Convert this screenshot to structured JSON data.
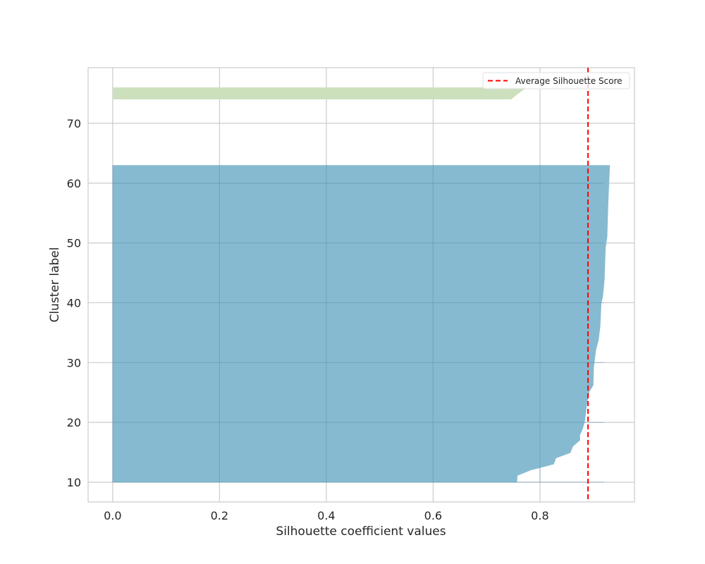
{
  "chart_data": {
    "type": "area",
    "title": "",
    "xlabel": "Silhouette coefficient values",
    "ylabel": "Cluster label",
    "xlim": [
      -0.046,
      0.977
    ],
    "ylim": [
      6.7,
      79.3
    ],
    "xticks": [
      0.0,
      0.2,
      0.4,
      0.6,
      0.8
    ],
    "xtick_labels": [
      "0.0",
      "0.2",
      "0.4",
      "0.6",
      "0.8"
    ],
    "yticks": [
      10,
      20,
      30,
      40,
      50,
      60,
      70
    ],
    "ytick_labels": [
      "10",
      "20",
      "30",
      "40",
      "50",
      "60",
      "70"
    ],
    "grid": true,
    "legend_position": "top-right",
    "clusters": [
      {
        "color": "#80b6cf",
        "profile": [
          [
            10,
            0.757
          ],
          [
            11.1,
            0.758
          ],
          [
            12,
            0.783
          ],
          [
            13,
            0.826
          ],
          [
            14,
            0.83
          ],
          [
            14.9,
            0.857
          ],
          [
            16,
            0.862
          ],
          [
            17,
            0.875
          ],
          [
            17.9,
            0.875
          ],
          [
            18.9,
            0.88
          ],
          [
            20.1,
            0.884
          ],
          [
            23,
            0.888
          ],
          [
            25.2,
            0.893
          ],
          [
            26.2,
            0.9
          ],
          [
            29.3,
            0.901
          ],
          [
            32.1,
            0.905
          ],
          [
            33.8,
            0.91
          ],
          [
            36,
            0.913
          ],
          [
            39.9,
            0.915
          ],
          [
            41.1,
            0.918
          ],
          [
            43.9,
            0.921
          ],
          [
            49.2,
            0.923
          ],
          [
            50.9,
            0.926
          ],
          [
            56.8,
            0.928
          ],
          [
            63,
            0.931
          ]
        ]
      },
      {
        "color": "#cde0bd",
        "profile": [
          [
            74,
            0.746
          ],
          [
            75,
            0.76
          ],
          [
            76,
            0.775
          ]
        ]
      }
    ],
    "average_line": {
      "value": 0.89,
      "label": "Average Silhouette Score",
      "color": "#ff0000"
    }
  }
}
